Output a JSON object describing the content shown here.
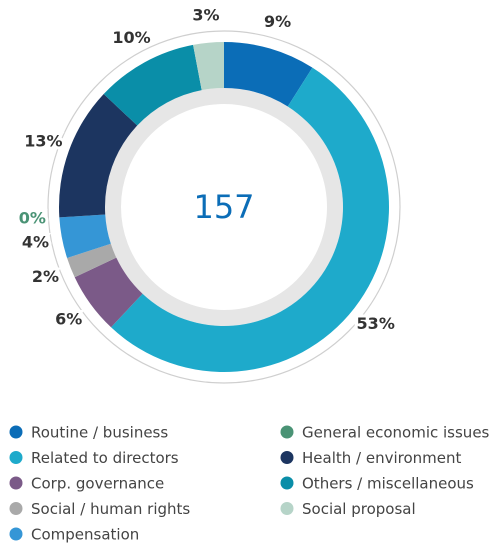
{
  "chart_data": {
    "type": "donut",
    "total": 157,
    "series": [
      {
        "name": "Routine / business",
        "color": "#0b6db7",
        "values": [
          9
        ],
        "value_labels": [
          "9%"
        ]
      },
      {
        "name": "Related to directors",
        "color": "#1eaacb",
        "values": [
          53
        ],
        "value_labels": [
          "53%"
        ]
      },
      {
        "name": "Corp. governance",
        "color": "#7b5a88",
        "values": [
          6
        ],
        "value_labels": [
          "6%"
        ]
      },
      {
        "name": "Social / human rights",
        "color": "#a9a9a9",
        "values": [
          2
        ],
        "value_labels": [
          "2%"
        ]
      },
      {
        "name": "Compensation",
        "color": "#3596d6",
        "values": [
          4
        ],
        "value_labels": [
          "4%"
        ]
      },
      {
        "name": "General economic issues",
        "color": "#4a9375",
        "values": [
          0
        ],
        "value_labels": [
          "0%"
        ]
      },
      {
        "name": "Health / environment",
        "color": "#1c3560",
        "values": [
          13
        ],
        "value_labels": [
          "13%"
        ]
      },
      {
        "name": "Others / miscellaneous",
        "color": "#0a8ea8",
        "values": [
          10
        ],
        "value_labels": [
          "10%"
        ]
      },
      {
        "name": "Social proposal",
        "color": "#b6d4c8",
        "values": [
          3
        ],
        "value_labels": [
          "3%"
        ]
      }
    ]
  }
}
